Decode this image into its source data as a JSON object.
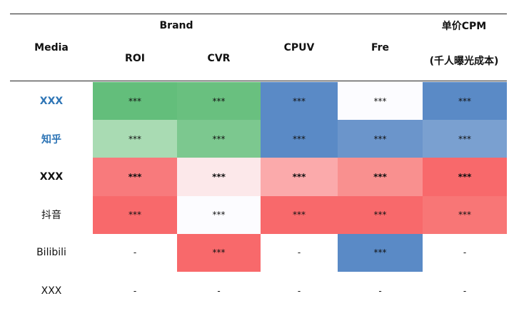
{
  "header": {
    "media": "Media",
    "brand": "Brand",
    "cpm": "单价CPM",
    "cpm_sub": "(千人曝光成本)",
    "columns": [
      "ROI",
      "CVR",
      "CPUV",
      "Fre"
    ]
  },
  "table": {
    "rows": [
      {
        "media": "XXX",
        "cells": [
          "***",
          "***",
          "***",
          "***",
          "***"
        ]
      },
      {
        "media": "知乎",
        "cells": [
          "***",
          "***",
          "***",
          "***",
          "***"
        ]
      },
      {
        "media": "XXX",
        "cells": [
          "***",
          "***",
          "***",
          "***",
          "***"
        ]
      },
      {
        "media": "抖音",
        "cells": [
          "***",
          "***",
          "***",
          "***",
          "***"
        ]
      },
      {
        "media": "Bilibili",
        "cells": [
          "-",
          "***",
          "-",
          "***",
          "-"
        ]
      },
      {
        "media": "XXX",
        "cells": [
          "-",
          "-",
          "-",
          "-",
          "-"
        ]
      }
    ]
  }
}
